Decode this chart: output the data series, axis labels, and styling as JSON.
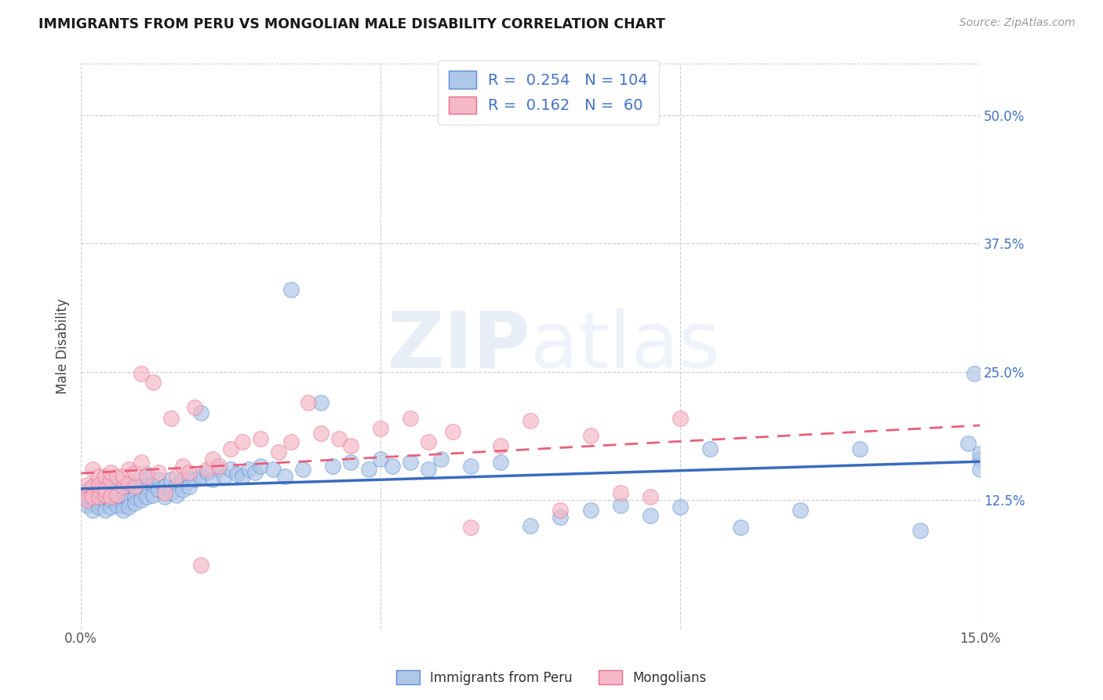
{
  "title": "IMMIGRANTS FROM PERU VS MONGOLIAN MALE DISABILITY CORRELATION CHART",
  "source": "Source: ZipAtlas.com",
  "ylabel": "Male Disability",
  "xlim": [
    0.0,
    0.15
  ],
  "ylim": [
    0.0,
    0.55
  ],
  "x_ticks": [
    0.0,
    0.05,
    0.1,
    0.15
  ],
  "x_tick_labels": [
    "0.0%",
    "",
    "",
    "15.0%"
  ],
  "y_ticks": [
    0.125,
    0.25,
    0.375,
    0.5
  ],
  "y_tick_labels": [
    "12.5%",
    "25.0%",
    "37.5%",
    "50.0%"
  ],
  "blue_R": 0.254,
  "blue_N": 104,
  "pink_R": 0.162,
  "pink_N": 60,
  "blue_color": "#aec6e8",
  "pink_color": "#f5b8c8",
  "blue_edge_color": "#5b8dd4",
  "pink_edge_color": "#e8708a",
  "blue_line_color": "#3a6bbf",
  "pink_line_color": "#e8607a",
  "legend_label_blue": "Immigrants from Peru",
  "legend_label_pink": "Mongolians",
  "watermark": "ZIPatlas",
  "blue_scatter_x": [
    0.001,
    0.001,
    0.001,
    0.001,
    0.001,
    0.002,
    0.002,
    0.002,
    0.002,
    0.002,
    0.003,
    0.003,
    0.003,
    0.003,
    0.003,
    0.004,
    0.004,
    0.004,
    0.004,
    0.004,
    0.005,
    0.005,
    0.005,
    0.005,
    0.005,
    0.006,
    0.006,
    0.006,
    0.006,
    0.007,
    0.007,
    0.007,
    0.007,
    0.008,
    0.008,
    0.008,
    0.008,
    0.009,
    0.009,
    0.009,
    0.01,
    0.01,
    0.01,
    0.011,
    0.011,
    0.011,
    0.012,
    0.012,
    0.013,
    0.013,
    0.014,
    0.014,
    0.015,
    0.015,
    0.016,
    0.016,
    0.017,
    0.017,
    0.018,
    0.018,
    0.019,
    0.02,
    0.02,
    0.021,
    0.022,
    0.023,
    0.024,
    0.025,
    0.026,
    0.027,
    0.028,
    0.029,
    0.03,
    0.032,
    0.034,
    0.035,
    0.037,
    0.04,
    0.042,
    0.045,
    0.048,
    0.05,
    0.052,
    0.055,
    0.058,
    0.06,
    0.065,
    0.07,
    0.075,
    0.08,
    0.085,
    0.09,
    0.095,
    0.1,
    0.105,
    0.11,
    0.12,
    0.13,
    0.14,
    0.148,
    0.149,
    0.15,
    0.15,
    0.15
  ],
  "blue_scatter_y": [
    0.13,
    0.135,
    0.125,
    0.12,
    0.128,
    0.135,
    0.128,
    0.122,
    0.115,
    0.138,
    0.132,
    0.125,
    0.118,
    0.14,
    0.128,
    0.138,
    0.125,
    0.115,
    0.128,
    0.135,
    0.14,
    0.128,
    0.118,
    0.125,
    0.132,
    0.135,
    0.125,
    0.12,
    0.13,
    0.138,
    0.128,
    0.12,
    0.115,
    0.14,
    0.13,
    0.125,
    0.118,
    0.135,
    0.128,
    0.122,
    0.145,
    0.135,
    0.125,
    0.15,
    0.138,
    0.128,
    0.14,
    0.13,
    0.145,
    0.135,
    0.138,
    0.128,
    0.145,
    0.132,
    0.14,
    0.13,
    0.145,
    0.135,
    0.148,
    0.138,
    0.145,
    0.21,
    0.148,
    0.152,
    0.145,
    0.155,
    0.148,
    0.155,
    0.15,
    0.148,
    0.155,
    0.152,
    0.158,
    0.155,
    0.148,
    0.33,
    0.155,
    0.22,
    0.158,
    0.162,
    0.155,
    0.165,
    0.158,
    0.162,
    0.155,
    0.165,
    0.158,
    0.162,
    0.1,
    0.108,
    0.115,
    0.12,
    0.11,
    0.118,
    0.175,
    0.098,
    0.115,
    0.175,
    0.095,
    0.18,
    0.248,
    0.165,
    0.155,
    0.17
  ],
  "pink_scatter_x": [
    0.001,
    0.001,
    0.001,
    0.002,
    0.002,
    0.002,
    0.003,
    0.003,
    0.003,
    0.003,
    0.004,
    0.004,
    0.004,
    0.005,
    0.005,
    0.005,
    0.006,
    0.006,
    0.007,
    0.007,
    0.008,
    0.008,
    0.009,
    0.009,
    0.01,
    0.01,
    0.011,
    0.012,
    0.013,
    0.014,
    0.015,
    0.016,
    0.017,
    0.018,
    0.019,
    0.02,
    0.021,
    0.022,
    0.023,
    0.025,
    0.027,
    0.03,
    0.033,
    0.035,
    0.038,
    0.04,
    0.043,
    0.045,
    0.05,
    0.055,
    0.058,
    0.062,
    0.065,
    0.07,
    0.075,
    0.08,
    0.085,
    0.09,
    0.095,
    0.1
  ],
  "pink_scatter_y": [
    0.132,
    0.14,
    0.125,
    0.138,
    0.155,
    0.128,
    0.135,
    0.148,
    0.128,
    0.14,
    0.13,
    0.148,
    0.135,
    0.145,
    0.128,
    0.152,
    0.13,
    0.148,
    0.138,
    0.148,
    0.142,
    0.155,
    0.138,
    0.152,
    0.248,
    0.162,
    0.148,
    0.24,
    0.152,
    0.132,
    0.205,
    0.148,
    0.158,
    0.152,
    0.215,
    0.062,
    0.155,
    0.165,
    0.158,
    0.175,
    0.182,
    0.185,
    0.172,
    0.182,
    0.22,
    0.19,
    0.185,
    0.178,
    0.195,
    0.205,
    0.182,
    0.192,
    0.098,
    0.178,
    0.202,
    0.115,
    0.188,
    0.132,
    0.128,
    0.205
  ]
}
